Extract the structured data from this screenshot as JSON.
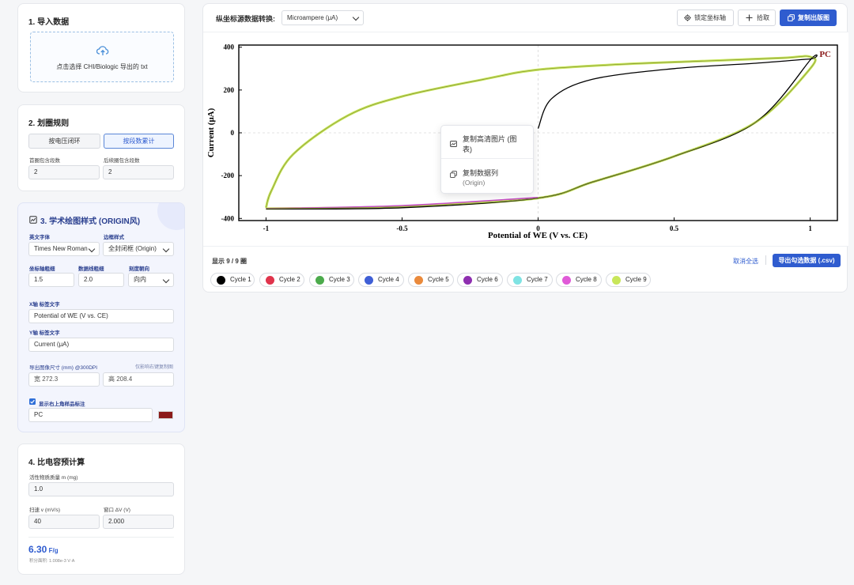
{
  "sidebar": {
    "import": {
      "title": "1. 导入数据",
      "upload_text": "点击选择 CHI/Biologic 导出的 txt"
    },
    "rules": {
      "title": "2. 划圈规则",
      "mode_voltage": "按电压闭环",
      "mode_segment": "按段数累计",
      "first_label": "首圈包含段数",
      "first_value": "2",
      "later_label": "后续圈包含段数",
      "later_value": "2"
    },
    "style": {
      "title": "3. 学术绘图样式 (ORIGIN风)",
      "font_label": "英文字体",
      "font_value": "Times New Roman",
      "frame_label": "边框样式",
      "frame_value": "全封闭框 (Origin)",
      "axis_width_label": "坐标轴粗细",
      "axis_width_value": "1.5",
      "line_width_label": "数据线粗细",
      "line_width_value": "2.0",
      "tick_label": "刻度朝向",
      "tick_value": "向内",
      "xaxis_label": "X轴 标签文字",
      "xaxis_value": "Potential of WE (V vs. CE)",
      "yaxis_label": "Y轴 标签文字",
      "yaxis_value": "Current (μA)",
      "export_label": "导出图像尺寸 (mm) @300DPI",
      "export_hint": "仅影响右键复制图",
      "width_value": "宽 272.3",
      "height_value": "高 208.4",
      "show_label": "显示右上角样品标注",
      "annotation_value": "PC",
      "annotation_color": "#8b1a1a"
    },
    "capacitance": {
      "title": "4. 比电容预计算",
      "mass_label": "活性物质质量 m (mg)",
      "mass_value": "1.0",
      "rate_label": "扫速 v (mV/s)",
      "rate_value": "40",
      "window_label": "窗口 ΔV (V)",
      "window_value": "2.000",
      "result_value": "6.30",
      "result_unit": "F/g",
      "integral_text": "积分面积: 1.008e-3 V·A"
    }
  },
  "toolbar": {
    "unit_label": "纵坐标源数据转换:",
    "unit_value": "Microampere (μA)",
    "lock_label": "锁定坐标轴",
    "pick_label": "拾取",
    "copy_label": "复制出版图"
  },
  "context_menu": {
    "item1_line1": "复制高清图片 (图",
    "item1_line2": "表)",
    "item2_line1": "复制数据列",
    "item2_line2": "(Origin)"
  },
  "footer": {
    "count_text": "显示 9 / 9 圈",
    "deselect_label": "取消全选",
    "export_label": "导出勾选数据 (.csv)"
  },
  "cycles": [
    {
      "name": "Cycle 1",
      "color": "#000000"
    },
    {
      "name": "Cycle 2",
      "color": "#e0344c"
    },
    {
      "name": "Cycle 3",
      "color": "#4cab4c"
    },
    {
      "name": "Cycle 4",
      "color": "#3f5fd6"
    },
    {
      "name": "Cycle 5",
      "color": "#ea8a3c"
    },
    {
      "name": "Cycle 6",
      "color": "#8e2fb0"
    },
    {
      "name": "Cycle 7",
      "color": "#7fe3e3"
    },
    {
      "name": "Cycle 8",
      "color": "#e05ad8"
    },
    {
      "name": "Cycle 9",
      "color": "#c8e65a"
    }
  ],
  "chart_data": {
    "type": "line",
    "title": "",
    "xlabel": "Potential of WE (V vs. CE)",
    "ylabel": "Current (μA)",
    "xlim": [
      -1.1,
      1.1
    ],
    "ylim": [
      -410,
      410
    ],
    "x_ticks": [
      "-1",
      "-0.5",
      "0",
      "0.5",
      "1"
    ],
    "y_ticks": [
      "400",
      "200",
      "0",
      "-200",
      "-400"
    ],
    "annotation": "PC",
    "grid": "dashed at zero",
    "series": [
      {
        "name": "Cycle 1",
        "color": "#000000",
        "x": [
          0,
          0.05,
          0.2,
          0.5,
          0.8,
          1.0,
          1.0,
          0.8,
          0.5,
          0.2,
          0,
          -0.5,
          -1.0
        ],
        "y": [
          20,
          160,
          250,
          300,
          325,
          345,
          340,
          50,
          -110,
          -230,
          -305,
          -350,
          -356
        ]
      },
      {
        "name": "Cycle 9",
        "color": "#c8e65a",
        "x": [
          -1.0,
          -0.98,
          -0.9,
          -0.7,
          -0.5,
          -0.2,
          0,
          0.3,
          0.6,
          0.9,
          1.0,
          1.0,
          0.8,
          0.5,
          0.2,
          0,
          -0.5,
          -1.0
        ],
        "y": [
          -350,
          -270,
          -100,
          80,
          170,
          250,
          295,
          320,
          335,
          350,
          355,
          300,
          50,
          -110,
          -230,
          -305,
          -345,
          -354
        ]
      }
    ]
  }
}
